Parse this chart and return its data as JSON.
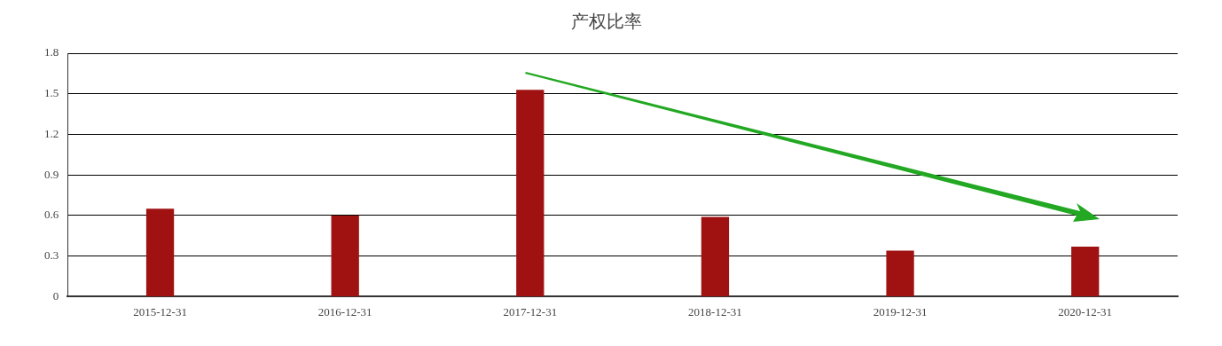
{
  "chart_data": {
    "type": "bar",
    "title": "产权比率",
    "categories": [
      "2015-12-31",
      "2016-12-31",
      "2017-12-31",
      "2018-12-31",
      "2019-12-31",
      "2020-12-31"
    ],
    "values": [
      0.65,
      0.6,
      1.53,
      0.59,
      0.34,
      0.37
    ],
    "color": "#a01212",
    "ylim": [
      0,
      1.8
    ],
    "yticks": [
      {
        "value": 0,
        "label": "0"
      },
      {
        "value": 0.3,
        "label": "0.3"
      },
      {
        "value": 0.6,
        "label": "0.6"
      },
      {
        "value": 0.9,
        "label": "0.9"
      },
      {
        "value": 1.2,
        "label": "1.2"
      },
      {
        "value": 1.5,
        "label": "1.5"
      },
      {
        "value": 1.8,
        "label": "1.8"
      }
    ],
    "grid": "y",
    "legend": false
  }
}
